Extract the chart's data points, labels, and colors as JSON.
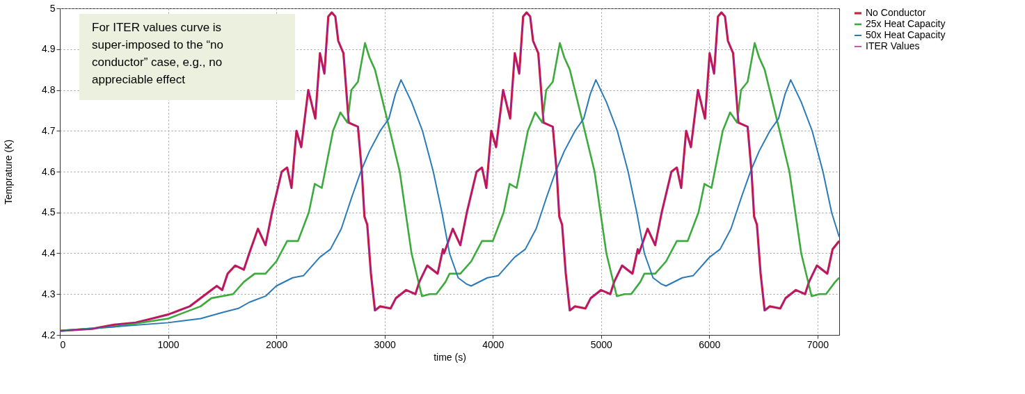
{
  "chart_data": {
    "type": "line",
    "xlabel": "time (s)",
    "ylabel": "Temprature (K)",
    "xlim": [
      0,
      7200
    ],
    "ylim": [
      4.2,
      5
    ],
    "xticks": [
      0,
      1000,
      2000,
      3000,
      4000,
      5000,
      6000,
      7000
    ],
    "yticks": [
      4.2,
      4.3,
      4.4,
      4.5,
      4.6,
      4.7,
      4.8,
      4.9,
      5
    ],
    "grid": true,
    "legend": "right",
    "line_style": "solid",
    "annotations": [
      "For ITER values curve is super-imposed to the “no conductor” case, e.g., no appreciable effect"
    ],
    "series": [
      {
        "name": "No Conductor",
        "color": "#c8283c",
        "x": [
          0,
          300,
          500,
          700,
          850,
          1000,
          1100,
          1200,
          1300,
          1400,
          1450,
          1500,
          1550,
          1620,
          1700,
          1750,
          1830,
          1900,
          1960,
          2050,
          2100,
          2140,
          2186,
          2230,
          2295,
          2360,
          2403,
          2444,
          2480,
          2512,
          2545,
          2572,
          2620,
          2669,
          2754,
          2790,
          2814,
          2840,
          2874,
          2911,
          2959,
          3056,
          3104,
          3200,
          3285,
          3321,
          3394,
          3490,
          3539,
          3550,
          3630,
          3700,
          3760,
          3850,
          3900,
          3940,
          3986,
          4030,
          4095,
          4160,
          4203,
          4244,
          4280,
          4312,
          4345,
          4372,
          4420,
          4469,
          4554,
          4590,
          4614,
          4640,
          4674,
          4711,
          4759,
          4856,
          4904,
          5000,
          5085,
          5121,
          5194,
          5290,
          5339,
          5350,
          5430,
          5500,
          5560,
          5650,
          5700,
          5740,
          5786,
          5830,
          5895,
          5960,
          6003,
          6044,
          6080,
          6112,
          6145,
          6172,
          6220,
          6269,
          6354,
          6390,
          6414,
          6440,
          6474,
          6511,
          6559,
          6656,
          6704,
          6800,
          6885,
          6921,
          6994,
          7090,
          7139,
          7200
        ],
        "values": [
          4.21,
          4.215,
          4.225,
          4.23,
          4.24,
          4.25,
          4.26,
          4.27,
          4.29,
          4.31,
          4.32,
          4.31,
          4.35,
          4.37,
          4.36,
          4.4,
          4.46,
          4.42,
          4.5,
          4.6,
          4.61,
          4.56,
          4.7,
          4.66,
          4.8,
          4.73,
          4.89,
          4.84,
          4.98,
          4.99,
          4.98,
          4.92,
          4.89,
          4.72,
          4.71,
          4.6,
          4.49,
          4.47,
          4.35,
          4.26,
          4.27,
          4.265,
          4.29,
          4.31,
          4.3,
          4.33,
          4.37,
          4.35,
          4.41,
          4.4,
          4.46,
          4.42,
          4.5,
          4.6,
          4.61,
          4.56,
          4.7,
          4.66,
          4.8,
          4.73,
          4.89,
          4.84,
          4.98,
          4.99,
          4.98,
          4.92,
          4.89,
          4.72,
          4.71,
          4.6,
          4.49,
          4.47,
          4.35,
          4.26,
          4.27,
          4.265,
          4.29,
          4.31,
          4.3,
          4.33,
          4.37,
          4.35,
          4.41,
          4.4,
          4.46,
          4.42,
          4.5,
          4.6,
          4.61,
          4.56,
          4.7,
          4.66,
          4.8,
          4.73,
          4.89,
          4.84,
          4.98,
          4.99,
          4.98,
          4.92,
          4.89,
          4.72,
          4.71,
          4.6,
          4.49,
          4.47,
          4.35,
          4.26,
          4.27,
          4.265,
          4.29,
          4.31,
          4.3,
          4.33,
          4.37,
          4.35,
          4.41,
          4.43
        ]
      },
      {
        "name": "25x Heat Capacity",
        "color": "#3caa3c",
        "x": [
          0,
          500,
          1000,
          1100,
          1300,
          1400,
          1600,
          1700,
          1800,
          1900,
          2000,
          2100,
          2200,
          2300,
          2355,
          2420,
          2524,
          2592,
          2657,
          2693,
          2754,
          2819,
          2860,
          2911,
          3031,
          3140,
          3249,
          3345,
          3418,
          3478,
          3563,
          3600,
          3700,
          3800,
          3900,
          4000,
          4100,
          4155,
          4220,
          4324,
          4392,
          4457,
          4493,
          4554,
          4619,
          4660,
          4711,
          4831,
          4940,
          5049,
          5145,
          5218,
          5278,
          5363,
          5400,
          5500,
          5600,
          5700,
          5800,
          5900,
          5955,
          6020,
          6124,
          6192,
          6257,
          6293,
          6354,
          6419,
          6460,
          6511,
          6631,
          6740,
          6849,
          6945,
          7018,
          7078,
          7163,
          7200
        ],
        "values": [
          4.21,
          4.22,
          4.24,
          4.25,
          4.27,
          4.29,
          4.3,
          4.33,
          4.35,
          4.35,
          4.38,
          4.43,
          4.43,
          4.5,
          4.57,
          4.56,
          4.7,
          4.745,
          4.72,
          4.8,
          4.82,
          4.915,
          4.88,
          4.85,
          4.72,
          4.6,
          4.4,
          4.295,
          4.3,
          4.3,
          4.33,
          4.35,
          4.35,
          4.38,
          4.43,
          4.43,
          4.5,
          4.57,
          4.56,
          4.7,
          4.745,
          4.72,
          4.8,
          4.82,
          4.915,
          4.88,
          4.85,
          4.72,
          4.6,
          4.4,
          4.295,
          4.3,
          4.3,
          4.33,
          4.35,
          4.35,
          4.38,
          4.43,
          4.43,
          4.5,
          4.57,
          4.56,
          4.7,
          4.745,
          4.72,
          4.8,
          4.82,
          4.915,
          4.88,
          4.85,
          4.72,
          4.6,
          4.4,
          4.295,
          4.3,
          4.3,
          4.33,
          4.34
        ]
      },
      {
        "name": "50x Heat Capacity",
        "color": "#2a7ab8",
        "x": [
          0,
          500,
          1000,
          1300,
          1500,
          1650,
          1750,
          1900,
          2000,
          2150,
          2250,
          2400,
          2500,
          2600,
          2700,
          2780,
          2860,
          2960,
          3040,
          3100,
          3152,
          3250,
          3350,
          3450,
          3530,
          3600,
          3680,
          3755,
          3800,
          3950,
          4050,
          4200,
          4300,
          4400,
          4500,
          4580,
          4660,
          4760,
          4840,
          4900,
          4952,
          5050,
          5150,
          5250,
          5330,
          5400,
          5480,
          5555,
          5600,
          5750,
          5850,
          6000,
          6100,
          6200,
          6300,
          6380,
          6460,
          6560,
          6640,
          6700,
          6752,
          6850,
          6950,
          7050,
          7130,
          7200
        ],
        "values": [
          4.21,
          4.22,
          4.23,
          4.24,
          4.255,
          4.265,
          4.28,
          4.295,
          4.32,
          4.34,
          4.345,
          4.39,
          4.41,
          4.46,
          4.54,
          4.6,
          4.65,
          4.7,
          4.73,
          4.79,
          4.825,
          4.77,
          4.7,
          4.6,
          4.5,
          4.4,
          4.34,
          4.325,
          4.32,
          4.34,
          4.345,
          4.39,
          4.41,
          4.46,
          4.54,
          4.6,
          4.65,
          4.7,
          4.73,
          4.79,
          4.825,
          4.77,
          4.7,
          4.6,
          4.5,
          4.4,
          4.34,
          4.325,
          4.32,
          4.34,
          4.345,
          4.39,
          4.41,
          4.46,
          4.54,
          4.6,
          4.65,
          4.7,
          4.73,
          4.79,
          4.825,
          4.77,
          4.7,
          4.6,
          4.5,
          4.44
        ]
      },
      {
        "name": "ITER Values",
        "color": "#b0108c",
        "x": [
          0,
          300,
          500,
          700,
          850,
          1000,
          1100,
          1200,
          1300,
          1400,
          1450,
          1500,
          1550,
          1620,
          1700,
          1750,
          1830,
          1900,
          1960,
          2050,
          2100,
          2140,
          2186,
          2230,
          2295,
          2360,
          2403,
          2444,
          2480,
          2512,
          2545,
          2572,
          2620,
          2669,
          2754,
          2790,
          2814,
          2840,
          2874,
          2911,
          2959,
          3056,
          3104,
          3200,
          3285,
          3321,
          3394,
          3490,
          3539,
          3550,
          3630,
          3700,
          3760,
          3850,
          3900,
          3940,
          3986,
          4030,
          4095,
          4160,
          4203,
          4244,
          4280,
          4312,
          4345,
          4372,
          4420,
          4469,
          4554,
          4590,
          4614,
          4640,
          4674,
          4711,
          4759,
          4856,
          4904,
          5000,
          5085,
          5121,
          5194,
          5290,
          5339,
          5350,
          5430,
          5500,
          5560,
          5650,
          5700,
          5740,
          5786,
          5830,
          5895,
          5960,
          6003,
          6044,
          6080,
          6112,
          6145,
          6172,
          6220,
          6269,
          6354,
          6390,
          6414,
          6440,
          6474,
          6511,
          6559,
          6656,
          6704,
          6800,
          6885,
          6921,
          6994,
          7090,
          7139,
          7200
        ],
        "values": [
          4.21,
          4.215,
          4.225,
          4.23,
          4.24,
          4.25,
          4.26,
          4.27,
          4.29,
          4.31,
          4.32,
          4.31,
          4.35,
          4.37,
          4.36,
          4.4,
          4.46,
          4.42,
          4.5,
          4.6,
          4.61,
          4.56,
          4.7,
          4.66,
          4.8,
          4.73,
          4.89,
          4.84,
          4.98,
          4.99,
          4.98,
          4.92,
          4.89,
          4.72,
          4.71,
          4.6,
          4.49,
          4.47,
          4.35,
          4.26,
          4.27,
          4.265,
          4.29,
          4.31,
          4.3,
          4.33,
          4.37,
          4.35,
          4.41,
          4.4,
          4.46,
          4.42,
          4.5,
          4.6,
          4.61,
          4.56,
          4.7,
          4.66,
          4.8,
          4.73,
          4.89,
          4.84,
          4.98,
          4.99,
          4.98,
          4.92,
          4.89,
          4.72,
          4.71,
          4.6,
          4.49,
          4.47,
          4.35,
          4.26,
          4.27,
          4.265,
          4.29,
          4.31,
          4.3,
          4.33,
          4.37,
          4.35,
          4.41,
          4.4,
          4.46,
          4.42,
          4.5,
          4.6,
          4.61,
          4.56,
          4.7,
          4.66,
          4.8,
          4.73,
          4.89,
          4.84,
          4.98,
          4.99,
          4.98,
          4.92,
          4.89,
          4.72,
          4.71,
          4.6,
          4.49,
          4.47,
          4.35,
          4.26,
          4.27,
          4.265,
          4.29,
          4.31,
          4.3,
          4.33,
          4.37,
          4.35,
          4.41,
          4.43
        ]
      }
    ]
  }
}
